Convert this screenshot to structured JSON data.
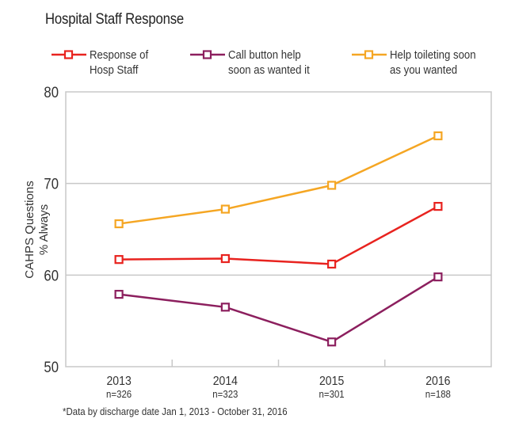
{
  "chart_data": {
    "type": "line",
    "title": "Hospital Staff Response",
    "xlabel": "",
    "ylabel": "CAHPS Questions\n% Always",
    "ylabel_lines": [
      "CAHPS Questions",
      "% Always"
    ],
    "categories": [
      "2013",
      "2014",
      "2015",
      "2016"
    ],
    "category_sublabels": [
      "n=326",
      "n=323",
      "n=301",
      "n=188"
    ],
    "ylim": [
      50,
      80
    ],
    "yticks": [
      50,
      60,
      70,
      80
    ],
    "grid": true,
    "legend_position": "top",
    "series": [
      {
        "name": "Response of Hosp Staff",
        "legend_lines": [
          "Response of",
          "Hosp Staff"
        ],
        "color": "#e8231f",
        "values": [
          61.7,
          61.8,
          61.2,
          67.5
        ]
      },
      {
        "name": "Call button help soon as wanted it",
        "legend_lines": [
          "Call button help",
          "soon as wanted it"
        ],
        "color": "#8c1f5e",
        "values": [
          57.9,
          56.5,
          52.7,
          59.8
        ]
      },
      {
        "name": "Help toileting soon as you wanted",
        "legend_lines": [
          "Help toileting soon",
          "as you wanted"
        ],
        "color": "#f5a623",
        "values": [
          65.6,
          67.2,
          69.8,
          75.2
        ]
      }
    ],
    "footnote": "*Data by discharge date Jan 1, 2013 - October 31, 2016"
  },
  "legend": [
    {
      "text": "Response of\nHosp Staff"
    },
    {
      "text": "Call button help\nsoon as wanted it"
    },
    {
      "text": "Help toileting soon\nas you wanted"
    }
  ]
}
